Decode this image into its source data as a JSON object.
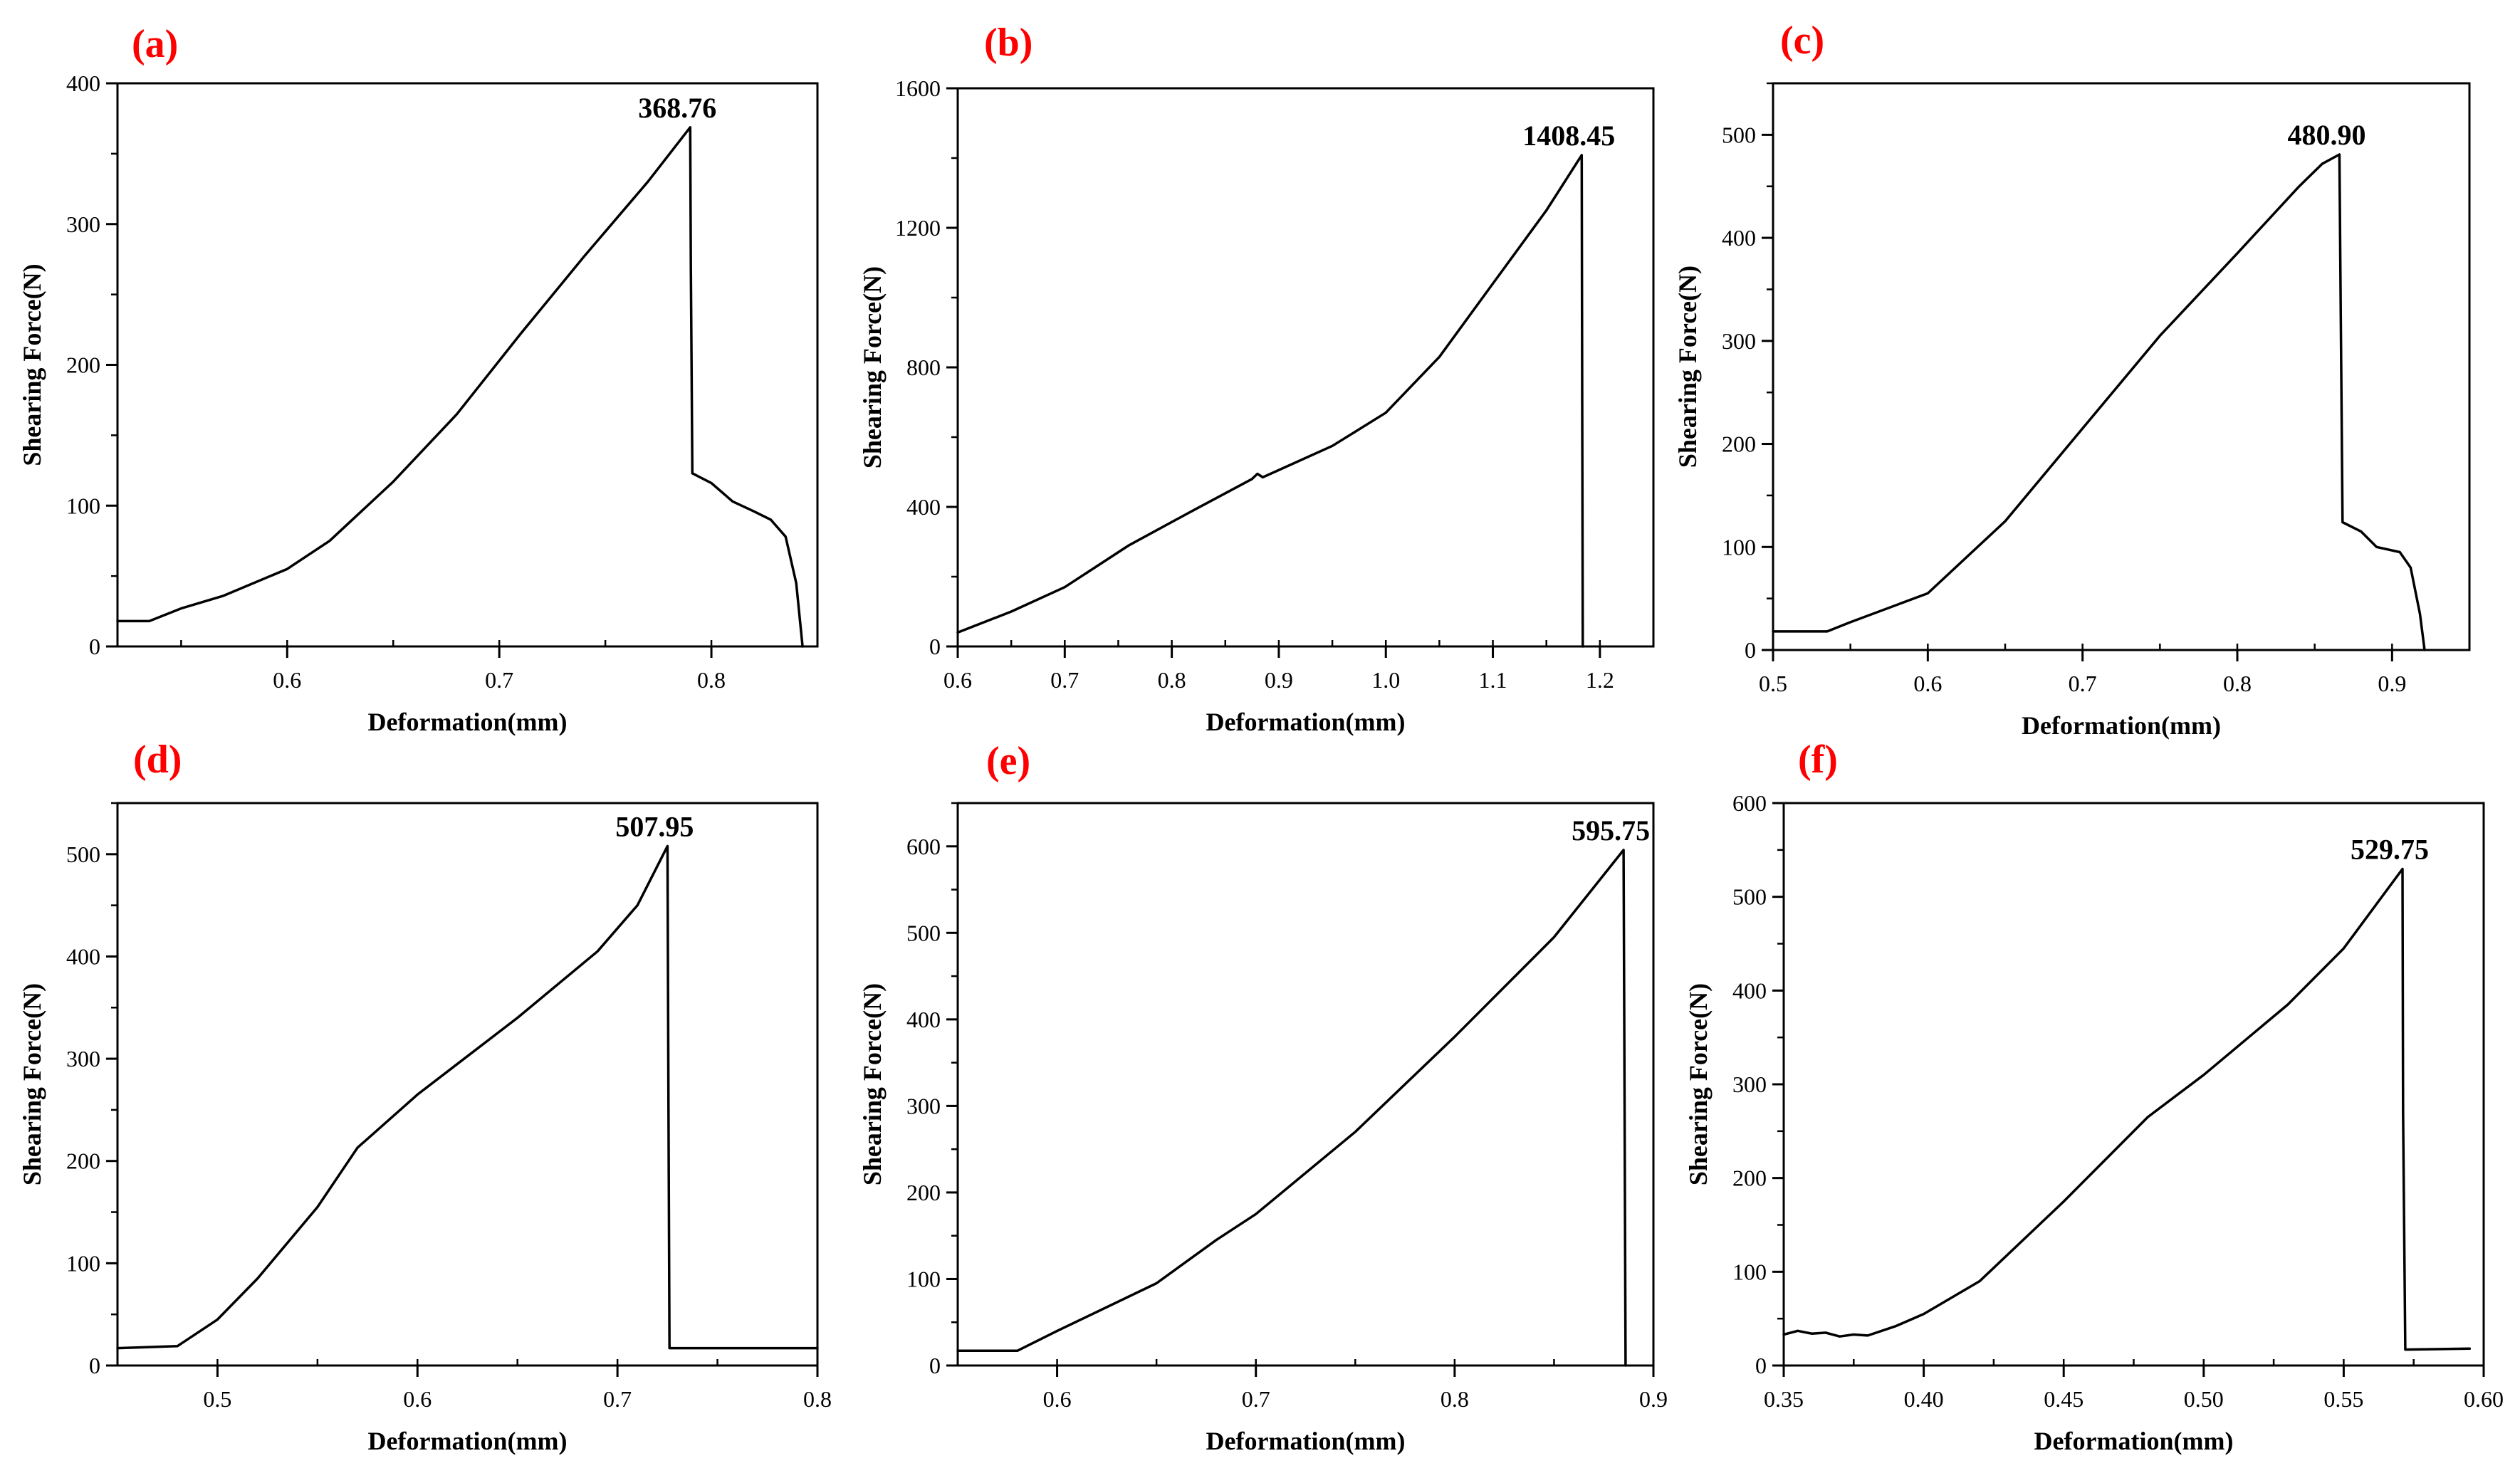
{
  "chart_data": [
    {
      "type": "line",
      "panel_label": "(a)",
      "title": "",
      "xlabel": "Deformation(mm)",
      "ylabel": "Shearing Force(N)",
      "xlim": [
        0.52,
        0.85
      ],
      "ylim": [
        0,
        400
      ],
      "xticks": [
        0.6,
        0.7,
        0.8
      ],
      "xtick_labels": [
        "0.6",
        "0.7",
        "0.8"
      ],
      "yticks": [
        0,
        100,
        200,
        300,
        400
      ],
      "ytick_labels": [
        "0",
        "100",
        "200",
        "300",
        "400"
      ],
      "x_minor_step": 0.05,
      "y_minor_step": 50,
      "peak": {
        "x": 0.79,
        "y": 368.76,
        "label": "368.76"
      },
      "series": [
        {
          "name": "curve",
          "color": "#000000",
          "x": [
            0.52,
            0.535,
            0.55,
            0.57,
            0.6,
            0.62,
            0.65,
            0.68,
            0.71,
            0.74,
            0.77,
            0.79,
            0.7903,
            0.791,
            0.8,
            0.81,
            0.82,
            0.828,
            0.835,
            0.84,
            0.843
          ],
          "y": [
            18,
            18,
            27,
            36,
            55,
            75,
            117,
            165,
            222,
            277,
            330,
            368.76,
            270,
            123,
            116,
            103,
            96,
            90,
            78,
            45,
            0
          ]
        }
      ]
    },
    {
      "type": "line",
      "panel_label": "(b)",
      "title": "",
      "xlabel": "Deformation(mm)",
      "ylabel": "Shearing Force(N)",
      "xlim": [
        0.6,
        1.25
      ],
      "ylim": [
        0,
        1600
      ],
      "xticks": [
        0.6,
        0.7,
        0.8,
        0.9,
        1.0,
        1.1,
        1.2
      ],
      "xtick_labels": [
        "0.6",
        "0.7",
        "0.8",
        "0.9",
        "1.0",
        "1.1",
        "1.2"
      ],
      "yticks": [
        0,
        400,
        800,
        1200,
        1600
      ],
      "ytick_labels": [
        "0",
        "400",
        "800",
        "1200",
        "1600"
      ],
      "x_minor_step": 0.05,
      "y_minor_step": 200,
      "peak": {
        "x": 1.183,
        "y": 1408.45,
        "label": "1408.45"
      },
      "series": [
        {
          "name": "curve",
          "color": "#000000",
          "x": [
            0.6,
            0.65,
            0.7,
            0.76,
            0.82,
            0.875,
            0.88,
            0.885,
            0.95,
            1.0,
            1.05,
            1.1,
            1.15,
            1.183,
            1.1835,
            1.184
          ],
          "y": [
            40,
            100,
            170,
            290,
            390,
            480,
            495,
            485,
            575,
            670,
            830,
            1040,
            1250,
            1408.45,
            700,
            0
          ]
        }
      ]
    },
    {
      "type": "line",
      "panel_label": "(c)",
      "title": "",
      "xlabel": "Deformation(mm)",
      "ylabel": "Shearing Force(N)",
      "xlim": [
        0.5,
        0.95
      ],
      "ylim": [
        0,
        550
      ],
      "xticks": [
        0.5,
        0.6,
        0.7,
        0.8,
        0.9
      ],
      "xtick_labels": [
        "0.5",
        "0.6",
        "0.7",
        "0.8",
        "0.9"
      ],
      "yticks": [
        0,
        100,
        200,
        300,
        400,
        500
      ],
      "ytick_labels": [
        "0",
        "100",
        "200",
        "300",
        "400",
        "500"
      ],
      "x_minor_step": 0.05,
      "y_minor_step": 50,
      "peak": {
        "x": 0.866,
        "y": 480.9,
        "label": "480.90"
      },
      "series": [
        {
          "name": "curve",
          "color": "#000000",
          "x": [
            0.5,
            0.535,
            0.55,
            0.6,
            0.65,
            0.7,
            0.75,
            0.8,
            0.84,
            0.855,
            0.866,
            0.867,
            0.868,
            0.88,
            0.89,
            0.905,
            0.912,
            0.918,
            0.921
          ],
          "y": [
            18,
            18,
            27,
            55,
            125,
            215,
            305,
            385,
            450,
            472,
            480.9,
            300,
            124,
            115,
            100,
            95,
            80,
            35,
            0
          ]
        }
      ]
    },
    {
      "type": "line",
      "panel_label": "(d)",
      "title": "",
      "xlabel": "Deformation(mm)",
      "ylabel": "Shearing Force(N)",
      "xlim": [
        0.45,
        0.8
      ],
      "ylim": [
        0,
        550
      ],
      "xticks": [
        0.5,
        0.6,
        0.7,
        0.8
      ],
      "xtick_labels": [
        "0.5",
        "0.6",
        "0.7",
        "0.8"
      ],
      "yticks": [
        0,
        100,
        200,
        300,
        400,
        500
      ],
      "ytick_labels": [
        "0",
        "100",
        "200",
        "300",
        "400",
        "500"
      ],
      "x_minor_step": 0.05,
      "y_minor_step": 50,
      "peak": {
        "x": 0.725,
        "y": 507.95,
        "label": "507.95"
      },
      "series": [
        {
          "name": "curve",
          "color": "#000000",
          "x": [
            0.45,
            0.48,
            0.5,
            0.52,
            0.55,
            0.57,
            0.6,
            0.65,
            0.69,
            0.71,
            0.725,
            0.7255,
            0.726,
            0.8
          ],
          "y": [
            17,
            19,
            45,
            85,
            155,
            213,
            265,
            340,
            405,
            450,
            507.95,
            250,
            17,
            17
          ]
        }
      ]
    },
    {
      "type": "line",
      "panel_label": "(e)",
      "title": "",
      "xlabel": "Deformation(mm)",
      "ylabel": "Shearing Force(N)",
      "xlim": [
        0.55,
        0.9
      ],
      "ylim": [
        0,
        650
      ],
      "xticks": [
        0.6,
        0.7,
        0.8,
        0.9
      ],
      "xtick_labels": [
        "0.6",
        "0.7",
        "0.8",
        "0.9"
      ],
      "yticks": [
        0,
        100,
        200,
        300,
        400,
        500,
        600
      ],
      "ytick_labels": [
        "0",
        "100",
        "200",
        "300",
        "400",
        "500",
        "600"
      ],
      "x_minor_step": 0.05,
      "y_minor_step": 50,
      "peak": {
        "x": 0.885,
        "y": 595.75,
        "label": "595.75"
      },
      "series": [
        {
          "name": "curve",
          "color": "#000000",
          "x": [
            0.55,
            0.58,
            0.6,
            0.65,
            0.68,
            0.7,
            0.75,
            0.8,
            0.85,
            0.885,
            0.8855,
            0.886
          ],
          "y": [
            17,
            17,
            40,
            95,
            145,
            175,
            270,
            380,
            495,
            595.75,
            300,
            0
          ]
        }
      ]
    },
    {
      "type": "line",
      "panel_label": "(f)",
      "title": "",
      "xlabel": "Deformation(mm)",
      "ylabel": "Shearing Force(N)",
      "xlim": [
        0.35,
        0.6
      ],
      "ylim": [
        0,
        600
      ],
      "xticks": [
        0.35,
        0.4,
        0.45,
        0.5,
        0.55,
        0.6
      ],
      "xtick_labels": [
        "0.35",
        "0.40",
        "0.45",
        "0.50",
        "0.55",
        "0.60"
      ],
      "yticks": [
        0,
        100,
        200,
        300,
        400,
        500,
        600
      ],
      "ytick_labels": [
        "0",
        "100",
        "200",
        "300",
        "400",
        "500",
        "600"
      ],
      "x_minor_step": 0.025,
      "y_minor_step": 50,
      "peak": {
        "x": 0.571,
        "y": 529.75,
        "label": "529.75"
      },
      "series": [
        {
          "name": "curve",
          "color": "#000000",
          "x": [
            0.35,
            0.355,
            0.36,
            0.365,
            0.37,
            0.375,
            0.38,
            0.39,
            0.4,
            0.42,
            0.45,
            0.48,
            0.5,
            0.53,
            0.55,
            0.571,
            0.5712,
            0.572,
            0.595
          ],
          "y": [
            33,
            37,
            34,
            35,
            31,
            33,
            32,
            42,
            55,
            90,
            175,
            265,
            310,
            385,
            445,
            529.75,
            270,
            17,
            18
          ]
        }
      ]
    }
  ]
}
